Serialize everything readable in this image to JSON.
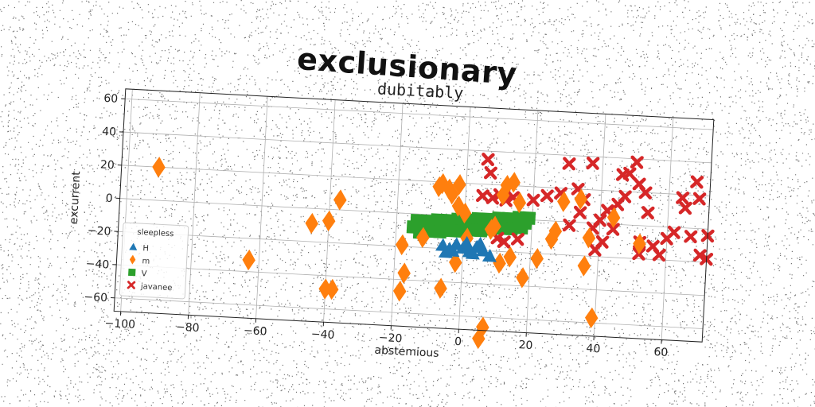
{
  "title": "exclusionary",
  "chart_data": {
    "type": "scatter",
    "subtitle": "dubitably",
    "xlabel": "abstemious",
    "ylabel": "excurrent",
    "xlim": [
      -102,
      72
    ],
    "ylim": [
      -68,
      66
    ],
    "xticks": [
      -100,
      -80,
      -60,
      -40,
      -20,
      0,
      20,
      40,
      60
    ],
    "yticks": [
      -60,
      -40,
      -20,
      0,
      20,
      40,
      60
    ],
    "grid": true,
    "legend": {
      "title": "sleepless",
      "placement": "bottom-left"
    },
    "series": [
      {
        "name": "H",
        "marker": "triangle",
        "color": "#1f77b4",
        "points": [
          [
            -6,
            -18
          ],
          [
            -4,
            -20
          ],
          [
            -2,
            -17
          ],
          [
            0,
            -19
          ],
          [
            2,
            -21
          ],
          [
            4,
            -18
          ],
          [
            6,
            -20
          ],
          [
            8,
            -23
          ],
          [
            3,
            -22
          ],
          [
            -5,
            -22
          ],
          [
            1,
            -16
          ],
          [
            5,
            -16
          ],
          [
            -3,
            -21
          ]
        ]
      },
      {
        "name": "m",
        "marker": "diamond",
        "color": "#ff7f0e",
        "points": [
          [
            -91,
            20
          ],
          [
            -63,
            -33
          ],
          [
            -45,
            -9
          ],
          [
            -40,
            -7
          ],
          [
            -37,
            6
          ],
          [
            -40,
            -48
          ],
          [
            -38,
            -48
          ],
          [
            -18,
            -19
          ],
          [
            -17,
            -36
          ],
          [
            -18,
            -47
          ],
          [
            -12,
            -14
          ],
          [
            -8,
            17
          ],
          [
            -7,
            19
          ],
          [
            -5,
            16
          ],
          [
            -4,
            13
          ],
          [
            -2,
            19
          ],
          [
            -2,
            6
          ],
          [
            0,
            2
          ],
          [
            -6,
            -44
          ],
          [
            -2,
            -28
          ],
          [
            1,
            -13
          ],
          [
            8,
            -7
          ],
          [
            11,
            14
          ],
          [
            12,
            20
          ],
          [
            14,
            22
          ],
          [
            16,
            10
          ],
          [
            11,
            -27
          ],
          [
            14,
            -23
          ],
          [
            18,
            -35
          ],
          [
            22,
            -23
          ],
          [
            26,
            -11
          ],
          [
            27,
            -6
          ],
          [
            29,
            12
          ],
          [
            34,
            14
          ],
          [
            36,
            -26
          ],
          [
            37,
            -9
          ],
          [
            39,
            -57
          ],
          [
            44,
            4
          ],
          [
            52,
            -11
          ],
          [
            6,
            -73
          ],
          [
            7,
            -66
          ],
          [
            9,
            -5
          ]
        ]
      },
      {
        "name": "V",
        "marker": "square",
        "color": "#2ca02c",
        "points": [
          [
            -15,
            -8
          ],
          [
            -12,
            -8
          ],
          [
            -9,
            -7
          ],
          [
            -6,
            -7
          ],
          [
            -3,
            -6
          ],
          [
            0,
            -6
          ],
          [
            3,
            -5
          ],
          [
            6,
            -4
          ],
          [
            9,
            -4
          ],
          [
            12,
            -3
          ],
          [
            15,
            -3
          ],
          [
            18,
            -2
          ],
          [
            -14,
            -4
          ],
          [
            -11,
            -4
          ],
          [
            -8,
            -3
          ],
          [
            -5,
            -3
          ],
          [
            -2,
            -2
          ],
          [
            1,
            -2
          ],
          [
            4,
            -1
          ],
          [
            7,
            -1
          ],
          [
            10,
            0
          ],
          [
            13,
            0
          ],
          [
            16,
            1
          ],
          [
            19,
            1
          ],
          [
            -13,
            -11
          ],
          [
            -10,
            -10
          ],
          [
            -7,
            -10
          ],
          [
            -4,
            -9
          ],
          [
            -1,
            -9
          ],
          [
            2,
            -8
          ],
          [
            5,
            -8
          ],
          [
            8,
            -7
          ],
          [
            11,
            -6
          ],
          [
            14,
            -6
          ],
          [
            17,
            -5
          ]
        ]
      },
      {
        "name": "javanee",
        "marker": "x",
        "color": "#d62728",
        "points": [
          [
            6,
            35
          ],
          [
            7,
            27
          ],
          [
            5,
            13
          ],
          [
            8,
            12
          ],
          [
            10,
            14
          ],
          [
            12,
            11
          ],
          [
            14,
            13
          ],
          [
            10,
            -12
          ],
          [
            12,
            -14
          ],
          [
            16,
            -12
          ],
          [
            20,
            12
          ],
          [
            24,
            15
          ],
          [
            28,
            17
          ],
          [
            30,
            35
          ],
          [
            31,
            -2
          ],
          [
            33,
            20
          ],
          [
            34,
            6
          ],
          [
            35,
            14
          ],
          [
            37,
            36
          ],
          [
            38,
            -3
          ],
          [
            39,
            -16
          ],
          [
            40,
            2
          ],
          [
            41,
            -11
          ],
          [
            42,
            8
          ],
          [
            44,
            -3
          ],
          [
            45,
            12
          ],
          [
            46,
            30
          ],
          [
            47,
            17
          ],
          [
            48,
            31
          ],
          [
            50,
            38
          ],
          [
            51,
            25
          ],
          [
            52,
            -10
          ],
          [
            53,
            20
          ],
          [
            54,
            8
          ],
          [
            56,
            -12
          ],
          [
            58,
            -17
          ],
          [
            60,
            -7
          ],
          [
            62,
            -3
          ],
          [
            64,
            18
          ],
          [
            65,
            12
          ],
          [
            67,
            -5
          ],
          [
            68,
            28
          ],
          [
            69,
            18
          ],
          [
            70,
            -16
          ],
          [
            72,
            -18
          ],
          [
            72,
            -4
          ],
          [
            52,
            -17
          ]
        ]
      }
    ]
  }
}
